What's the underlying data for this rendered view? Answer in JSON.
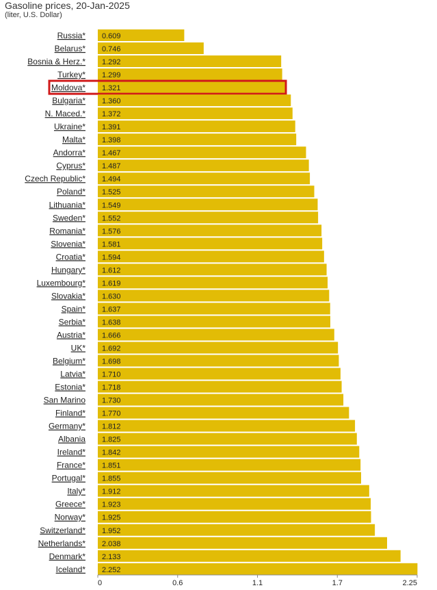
{
  "chart_data": {
    "type": "bar",
    "orientation": "horizontal",
    "title": "Gasoline prices, 20-Jan-2025",
    "subtitle": "(liter, U.S. Dollar)",
    "categories": [
      "Russia*",
      "Belarus*",
      "Bosnia & Herz.*",
      "Turkey*",
      "Moldova*",
      "Bulgaria*",
      "N. Maced.*",
      "Ukraine*",
      "Malta*",
      "Andorra*",
      "Cyprus*",
      "Czech Republic*",
      "Poland*",
      "Lithuania*",
      "Sweden*",
      "Romania*",
      "Slovenia*",
      "Croatia*",
      "Hungary*",
      "Luxembourg*",
      "Slovakia*",
      "Spain*",
      "Serbia*",
      "Austria*",
      "UK*",
      "Belgium*",
      "Latvia*",
      "Estonia*",
      "San Marino",
      "Finland*",
      "Germany*",
      "Albania",
      "Ireland*",
      "France*",
      "Portugal*",
      "Italy*",
      "Greece*",
      "Norway*",
      "Switzerland*",
      "Netherlands*",
      "Denmark*",
      "Iceland*"
    ],
    "values": [
      0.609,
      0.746,
      1.292,
      1.299,
      1.321,
      1.36,
      1.372,
      1.391,
      1.398,
      1.467,
      1.487,
      1.494,
      1.525,
      1.549,
      1.552,
      1.576,
      1.581,
      1.594,
      1.612,
      1.619,
      1.63,
      1.637,
      1.638,
      1.666,
      1.692,
      1.698,
      1.71,
      1.718,
      1.73,
      1.77,
      1.812,
      1.825,
      1.842,
      1.851,
      1.855,
      1.912,
      1.923,
      1.925,
      1.952,
      2.038,
      2.133,
      2.252
    ],
    "value_labels": [
      "0.609",
      "0.746",
      "1.292",
      "1.299",
      "1.321",
      "1.360",
      "1.372",
      "1.391",
      "1.398",
      "1.467",
      "1.487",
      "1.494",
      "1.525",
      "1.549",
      "1.552",
      "1.576",
      "1.581",
      "1.594",
      "1.612",
      "1.619",
      "1.630",
      "1.637",
      "1.638",
      "1.666",
      "1.692",
      "1.698",
      "1.710",
      "1.718",
      "1.730",
      "1.770",
      "1.812",
      "1.825",
      "1.842",
      "1.851",
      "1.855",
      "1.912",
      "1.923",
      "1.925",
      "1.952",
      "2.038",
      "2.133",
      "2.252"
    ],
    "highlight": "Moldova*",
    "xlim": [
      0,
      2.25
    ],
    "xticks": [
      "0",
      "0.6",
      "1.1",
      "1.7",
      "2.25"
    ],
    "xtick_values": [
      0,
      0.5625,
      1.125,
      1.6875,
      2.25
    ],
    "grid": false,
    "colors": {
      "bar": "#e2bc06",
      "highlight": "#d01a1a",
      "text": "#222222"
    }
  }
}
